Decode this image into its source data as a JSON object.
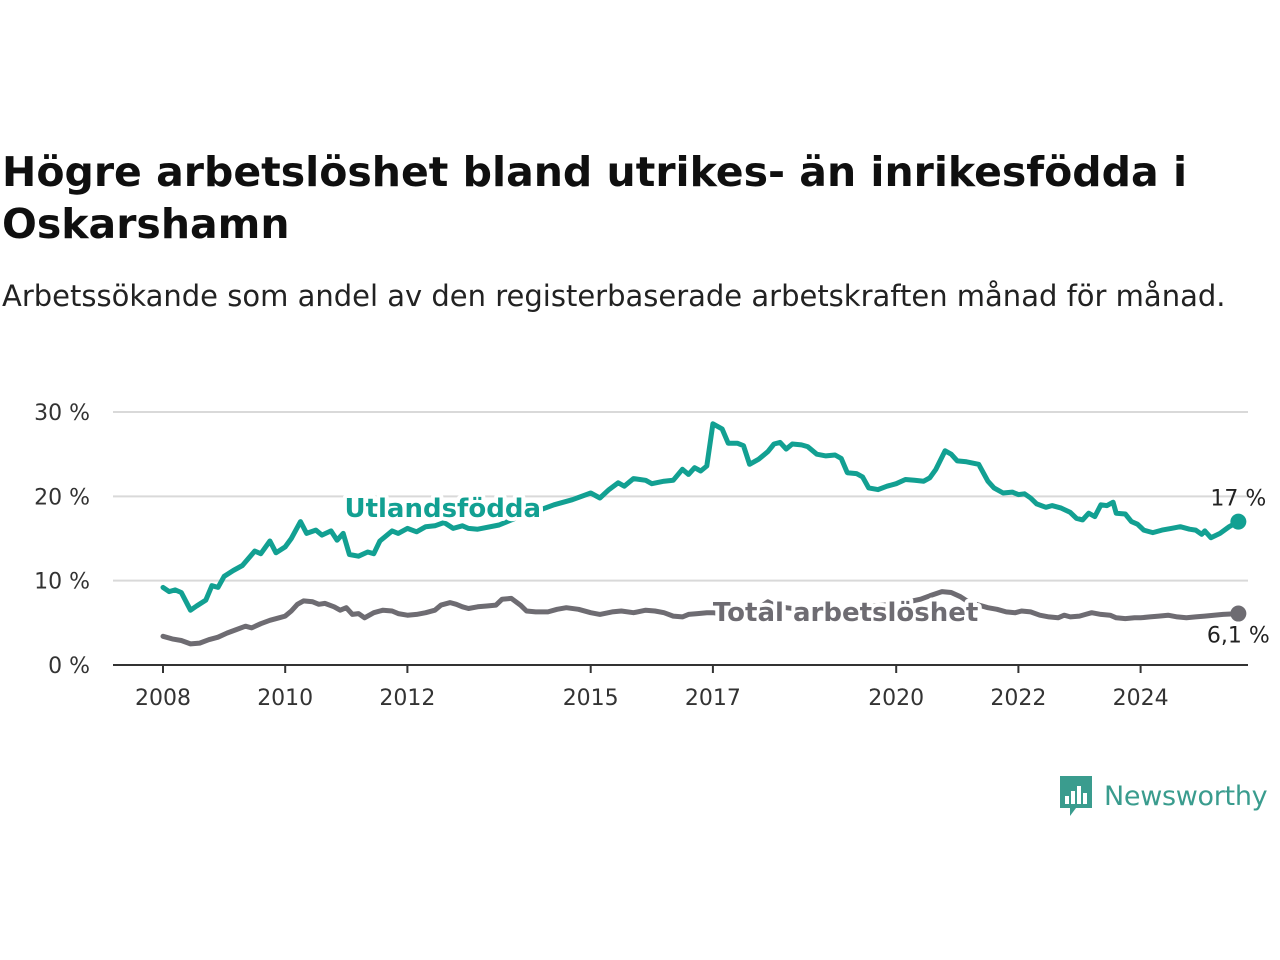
{
  "title": "Högre arbetslöshet bland utrikes- än inrikesfödda i Oskarshamn",
  "subtitle": "Arbetssökande som andel av den registerbaserade arbetskraften månad för månad.",
  "brand": {
    "name": "Newsworthy",
    "icon": "newsworthy-logo-icon",
    "color": "#3a9c8e"
  },
  "chart_data": {
    "type": "line",
    "title": "Högre arbetslöshet bland utrikes- än inrikesfödda i Oskarshamn",
    "subtitle": "Arbetssökande som andel av den registerbaserade arbetskraften månad för månad.",
    "xlabel": "",
    "ylabel": "",
    "xlim": [
      2008,
      2025.8
    ],
    "ylim": [
      0,
      30
    ],
    "grid": true,
    "legend": "inline",
    "x_ticks": [
      {
        "value": 2008,
        "label": "2008"
      },
      {
        "value": 2010,
        "label": "2010"
      },
      {
        "value": 2012,
        "label": "2012"
      },
      {
        "value": 2015,
        "label": "2015"
      },
      {
        "value": 2017,
        "label": "2017"
      },
      {
        "value": 2020,
        "label": "2020"
      },
      {
        "value": 2022,
        "label": "2022"
      },
      {
        "value": 2024,
        "label": "2024"
      }
    ],
    "y_ticks": [
      {
        "value": 0,
        "label": "0 %"
      },
      {
        "value": 10,
        "label": "10 %"
      },
      {
        "value": 20,
        "label": "20 %"
      },
      {
        "value": 30,
        "label": "30 %"
      }
    ],
    "series": [
      {
        "name": "Utlandsfödda",
        "color": "#12a092",
        "end_label": "17 %",
        "points": [
          [
            2008.0,
            9.2
          ],
          [
            2008.1,
            8.7
          ],
          [
            2008.2,
            8.9
          ],
          [
            2008.3,
            8.6
          ],
          [
            2008.45,
            6.5
          ],
          [
            2008.55,
            7.0
          ],
          [
            2008.7,
            7.7
          ],
          [
            2008.8,
            9.4
          ],
          [
            2008.9,
            9.2
          ],
          [
            2009.0,
            10.5
          ],
          [
            2009.15,
            11.2
          ],
          [
            2009.3,
            11.8
          ],
          [
            2009.5,
            13.5
          ],
          [
            2009.6,
            13.2
          ],
          [
            2009.75,
            14.7
          ],
          [
            2009.85,
            13.3
          ],
          [
            2010.0,
            14.0
          ],
          [
            2010.1,
            15.0
          ],
          [
            2010.25,
            17.0
          ],
          [
            2010.35,
            15.6
          ],
          [
            2010.5,
            16.0
          ],
          [
            2010.6,
            15.4
          ],
          [
            2010.75,
            15.9
          ],
          [
            2010.85,
            14.8
          ],
          [
            2010.95,
            15.6
          ],
          [
            2011.05,
            13.1
          ],
          [
            2011.2,
            12.9
          ],
          [
            2011.35,
            13.4
          ],
          [
            2011.45,
            13.2
          ],
          [
            2011.55,
            14.7
          ],
          [
            2011.75,
            15.9
          ],
          [
            2011.85,
            15.6
          ],
          [
            2012.0,
            16.2
          ],
          [
            2012.15,
            15.8
          ],
          [
            2012.3,
            16.4
          ],
          [
            2012.45,
            16.5
          ],
          [
            2012.6,
            16.9
          ],
          [
            2012.75,
            16.2
          ],
          [
            2012.9,
            16.5
          ],
          [
            2013.0,
            16.2
          ],
          [
            2013.15,
            16.1
          ],
          [
            2013.5,
            16.6
          ],
          [
            2013.8,
            17.5
          ],
          [
            2014.1,
            18.2
          ],
          [
            2014.4,
            19.0
          ],
          [
            2014.7,
            19.6
          ],
          [
            2015.0,
            20.4
          ],
          [
            2015.15,
            19.8
          ],
          [
            2015.3,
            20.8
          ],
          [
            2015.45,
            21.6
          ],
          [
            2015.55,
            21.2
          ],
          [
            2015.7,
            22.1
          ],
          [
            2015.9,
            21.9
          ],
          [
            2016.0,
            21.5
          ],
          [
            2016.2,
            21.8
          ],
          [
            2016.35,
            21.9
          ],
          [
            2016.5,
            23.2
          ],
          [
            2016.6,
            22.6
          ],
          [
            2016.7,
            23.4
          ],
          [
            2016.8,
            23.0
          ],
          [
            2016.9,
            23.6
          ],
          [
            2017.0,
            28.6
          ],
          [
            2017.15,
            28.0
          ],
          [
            2017.25,
            26.3
          ],
          [
            2017.4,
            26.3
          ],
          [
            2017.5,
            26.0
          ],
          [
            2017.6,
            23.8
          ],
          [
            2017.75,
            24.4
          ],
          [
            2017.9,
            25.3
          ],
          [
            2018.0,
            26.2
          ],
          [
            2018.1,
            26.4
          ],
          [
            2018.2,
            25.6
          ],
          [
            2018.3,
            26.2
          ],
          [
            2018.45,
            26.1
          ],
          [
            2018.55,
            25.9
          ],
          [
            2018.7,
            25.0
          ],
          [
            2018.85,
            24.8
          ],
          [
            2019.0,
            24.9
          ],
          [
            2019.1,
            24.5
          ],
          [
            2019.2,
            22.8
          ],
          [
            2019.35,
            22.7
          ],
          [
            2019.45,
            22.3
          ],
          [
            2019.55,
            21.0
          ],
          [
            2019.7,
            20.8
          ],
          [
            2019.85,
            21.2
          ],
          [
            2020.0,
            21.5
          ],
          [
            2020.15,
            22.0
          ],
          [
            2020.3,
            21.9
          ],
          [
            2020.45,
            21.8
          ],
          [
            2020.55,
            22.2
          ],
          [
            2020.65,
            23.2
          ],
          [
            2020.8,
            25.4
          ],
          [
            2020.9,
            25.0
          ],
          [
            2021.0,
            24.2
          ],
          [
            2021.15,
            24.1
          ],
          [
            2021.35,
            23.8
          ],
          [
            2021.5,
            21.8
          ],
          [
            2021.6,
            21.0
          ],
          [
            2021.75,
            20.4
          ],
          [
            2021.9,
            20.5
          ],
          [
            2022.0,
            20.2
          ],
          [
            2022.1,
            20.3
          ],
          [
            2022.2,
            19.8
          ],
          [
            2022.3,
            19.1
          ],
          [
            2022.45,
            18.7
          ],
          [
            2022.55,
            18.9
          ],
          [
            2022.7,
            18.6
          ],
          [
            2022.85,
            18.1
          ],
          [
            2022.95,
            17.4
          ],
          [
            2023.05,
            17.2
          ],
          [
            2023.15,
            18.0
          ],
          [
            2023.25,
            17.6
          ],
          [
            2023.35,
            19.0
          ],
          [
            2023.45,
            18.9
          ],
          [
            2023.55,
            19.3
          ],
          [
            2023.6,
            18.0
          ],
          [
            2023.75,
            17.9
          ],
          [
            2023.85,
            17.0
          ],
          [
            2023.95,
            16.7
          ],
          [
            2024.05,
            16.0
          ],
          [
            2024.2,
            15.7
          ],
          [
            2024.35,
            16.0
          ],
          [
            2024.5,
            16.2
          ],
          [
            2024.65,
            16.4
          ],
          [
            2024.8,
            16.1
          ],
          [
            2024.9,
            16.0
          ],
          [
            2025.0,
            15.5
          ],
          [
            2025.05,
            15.9
          ],
          [
            2025.15,
            15.1
          ],
          [
            2025.3,
            15.6
          ],
          [
            2025.45,
            16.4
          ],
          [
            2025.6,
            17.0
          ]
        ]
      },
      {
        "name": "Total arbetslöshet",
        "color": "#6e6c72",
        "end_label": "6,1 %",
        "points": [
          [
            2008.0,
            3.4
          ],
          [
            2008.15,
            3.1
          ],
          [
            2008.3,
            2.9
          ],
          [
            2008.45,
            2.5
          ],
          [
            2008.6,
            2.6
          ],
          [
            2008.75,
            3.0
          ],
          [
            2008.9,
            3.3
          ],
          [
            2009.05,
            3.8
          ],
          [
            2009.2,
            4.2
          ],
          [
            2009.35,
            4.6
          ],
          [
            2009.45,
            4.4
          ],
          [
            2009.6,
            4.9
          ],
          [
            2009.75,
            5.3
          ],
          [
            2009.9,
            5.6
          ],
          [
            2010.0,
            5.8
          ],
          [
            2010.1,
            6.4
          ],
          [
            2010.2,
            7.2
          ],
          [
            2010.3,
            7.6
          ],
          [
            2010.45,
            7.5
          ],
          [
            2010.55,
            7.2
          ],
          [
            2010.65,
            7.3
          ],
          [
            2010.8,
            6.9
          ],
          [
            2010.9,
            6.5
          ],
          [
            2011.0,
            6.8
          ],
          [
            2011.1,
            6.0
          ],
          [
            2011.2,
            6.1
          ],
          [
            2011.3,
            5.6
          ],
          [
            2011.45,
            6.2
          ],
          [
            2011.6,
            6.5
          ],
          [
            2011.75,
            6.4
          ],
          [
            2011.85,
            6.1
          ],
          [
            2012.0,
            5.9
          ],
          [
            2012.15,
            6.0
          ],
          [
            2012.3,
            6.2
          ],
          [
            2012.45,
            6.5
          ],
          [
            2012.55,
            7.1
          ],
          [
            2012.7,
            7.4
          ],
          [
            2012.8,
            7.2
          ],
          [
            2012.9,
            6.9
          ],
          [
            2013.0,
            6.7
          ],
          [
            2013.15,
            6.9
          ],
          [
            2013.3,
            7.0
          ],
          [
            2013.45,
            7.1
          ],
          [
            2013.55,
            7.8
          ],
          [
            2013.7,
            7.9
          ],
          [
            2013.85,
            7.1
          ],
          [
            2013.95,
            6.4
          ],
          [
            2014.1,
            6.3
          ],
          [
            2014.3,
            6.3
          ],
          [
            2014.45,
            6.6
          ],
          [
            2014.6,
            6.8
          ],
          [
            2014.8,
            6.6
          ],
          [
            2015.0,
            6.2
          ],
          [
            2015.15,
            6.0
          ],
          [
            2015.35,
            6.3
          ],
          [
            2015.5,
            6.4
          ],
          [
            2015.7,
            6.2
          ],
          [
            2015.9,
            6.5
          ],
          [
            2016.05,
            6.4
          ],
          [
            2016.2,
            6.2
          ],
          [
            2016.35,
            5.8
          ],
          [
            2016.5,
            5.7
          ],
          [
            2016.6,
            6.0
          ],
          [
            2016.75,
            6.1
          ],
          [
            2016.9,
            6.2
          ],
          [
            2017.0,
            6.2
          ],
          [
            2017.2,
            6.0
          ],
          [
            2017.35,
            5.8
          ],
          [
            2017.5,
            6.0
          ],
          [
            2017.7,
            6.2
          ],
          [
            2017.8,
            7.0
          ],
          [
            2017.9,
            7.5
          ],
          [
            2018.0,
            7.1
          ],
          [
            2018.2,
            6.8
          ],
          [
            2018.4,
            6.6
          ],
          [
            2018.6,
            6.5
          ],
          [
            2018.8,
            6.3
          ],
          [
            2019.0,
            6.4
          ],
          [
            2019.2,
            6.6
          ],
          [
            2019.4,
            6.9
          ],
          [
            2019.6,
            7.0
          ],
          [
            2019.8,
            7.1
          ],
          [
            2020.0,
            7.3
          ],
          [
            2020.2,
            7.5
          ],
          [
            2020.4,
            7.8
          ],
          [
            2020.55,
            8.2
          ],
          [
            2020.75,
            8.7
          ],
          [
            2020.9,
            8.6
          ],
          [
            2021.05,
            8.1
          ],
          [
            2021.2,
            7.4
          ],
          [
            2021.35,
            7.1
          ],
          [
            2021.5,
            6.8
          ],
          [
            2021.65,
            6.6
          ],
          [
            2021.8,
            6.3
          ],
          [
            2021.95,
            6.2
          ],
          [
            2022.05,
            6.4
          ],
          [
            2022.2,
            6.3
          ],
          [
            2022.35,
            5.9
          ],
          [
            2022.5,
            5.7
          ],
          [
            2022.65,
            5.6
          ],
          [
            2022.75,
            5.9
          ],
          [
            2022.85,
            5.7
          ],
          [
            2023.0,
            5.8
          ],
          [
            2023.1,
            6.0
          ],
          [
            2023.2,
            6.2
          ],
          [
            2023.35,
            6.0
          ],
          [
            2023.5,
            5.9
          ],
          [
            2023.6,
            5.6
          ],
          [
            2023.75,
            5.5
          ],
          [
            2023.9,
            5.6
          ],
          [
            2024.0,
            5.6
          ],
          [
            2024.15,
            5.7
          ],
          [
            2024.3,
            5.8
          ],
          [
            2024.45,
            5.9
          ],
          [
            2024.6,
            5.7
          ],
          [
            2024.75,
            5.6
          ],
          [
            2024.9,
            5.7
          ],
          [
            2025.05,
            5.8
          ],
          [
            2025.2,
            5.9
          ],
          [
            2025.35,
            6.0
          ],
          [
            2025.6,
            6.1
          ]
        ]
      }
    ],
    "series_labels": [
      {
        "series": 0,
        "text": "Utlandsfödda",
        "x": 2010.97,
        "y": 18.6
      },
      {
        "series": 1,
        "text": "Total arbetslöshet",
        "x": 2017.0,
        "y": 6.3
      }
    ]
  }
}
